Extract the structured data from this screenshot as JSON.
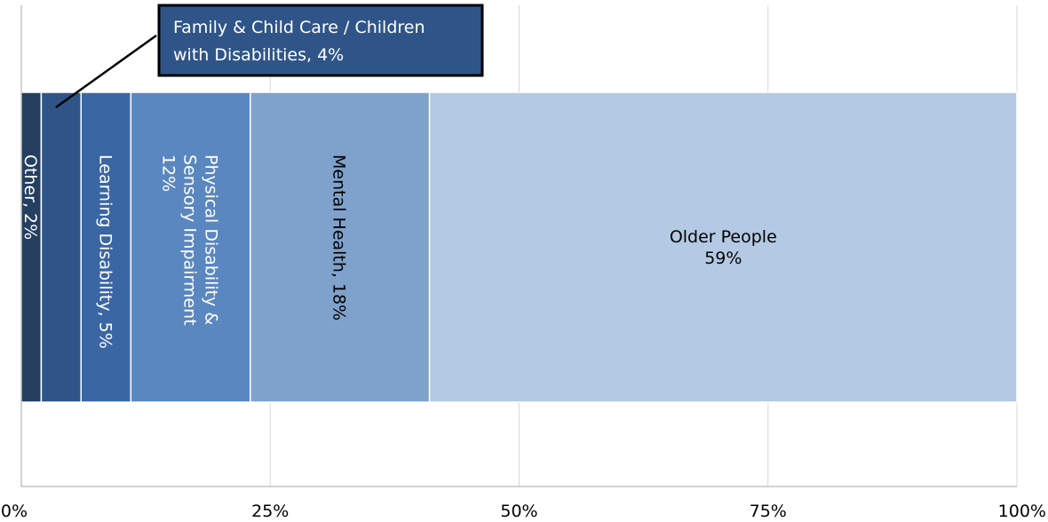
{
  "chart_data": {
    "type": "bar",
    "orientation": "horizontal-stacked",
    "title": "",
    "xlabel": "",
    "ylabel": "",
    "xlim": [
      0,
      100
    ],
    "x_ticks": [
      "0%",
      "25%",
      "50%",
      "75%",
      "100%"
    ],
    "grid": true,
    "legend": "none",
    "series": [
      {
        "name": "Other",
        "value": 2,
        "label_lines": [
          "Other, 2%"
        ],
        "color": "#243f60",
        "text_color": "#ffffff",
        "label_mode": "rotate-cw"
      },
      {
        "name": "Family & Child Care / Children with Disabilities",
        "value": 4,
        "label_lines": [
          "Family & Child Care / Children",
          "with Disabilities, 4%"
        ],
        "color": "#2f5588",
        "text_color": "#ffffff",
        "label_mode": "callout"
      },
      {
        "name": "Learning Disability",
        "value": 5,
        "label_lines": [
          "Learning Disability, 5%"
        ],
        "color": "#3a66a4",
        "text_color": "#ffffff",
        "label_mode": "rotate-cw"
      },
      {
        "name": "Physical Disability & Sensory Impairment",
        "value": 12,
        "label_lines": [
          "Physical Disability &",
          "Sensory Impairment",
          "12%"
        ],
        "color": "#5b87c0",
        "text_color": "#ffffff",
        "label_mode": "rotate-cw"
      },
      {
        "name": "Mental Health",
        "value": 18,
        "label_lines": [
          "Mental Health, 18%"
        ],
        "color": "#7fa2cc",
        "text_color": "#000000",
        "label_mode": "rotate-cw"
      },
      {
        "name": "Older People",
        "value": 59,
        "label_lines": [
          "Older People",
          "59%"
        ],
        "color": "#b4c9e3",
        "text_color": "#000000",
        "label_mode": "horizontal"
      }
    ]
  }
}
